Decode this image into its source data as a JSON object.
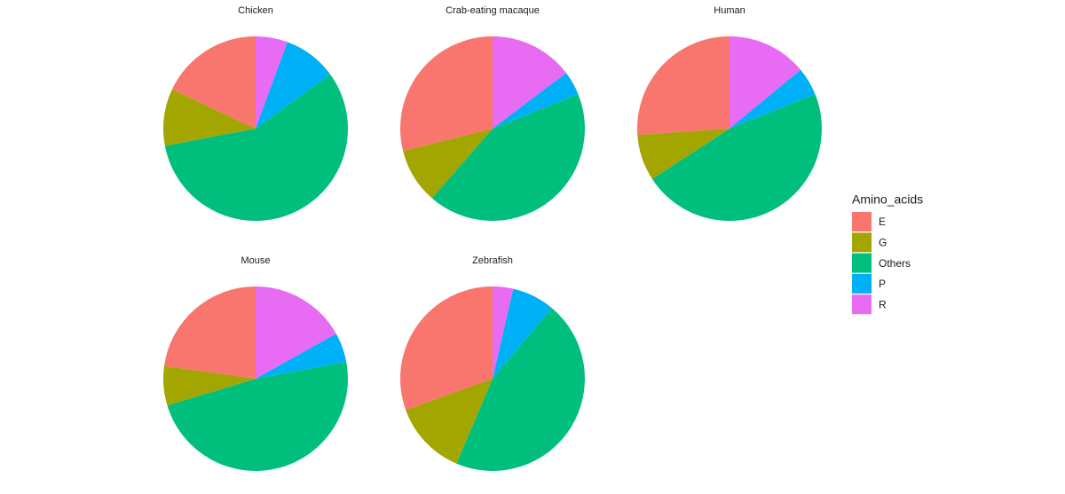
{
  "chart_data": {
    "type": "pie",
    "legend_title": "Amino_acids",
    "categories": [
      "E",
      "G",
      "Others",
      "P",
      "R"
    ],
    "colors": [
      "#F8766D",
      "#A3A500",
      "#00BF7D",
      "#00B0F6",
      "#E76BF3"
    ],
    "facets": [
      {
        "title": "Chicken",
        "values": [
          18,
          10,
          57,
          9.4,
          5.6
        ]
      },
      {
        "title": "Crab-eating macaque",
        "values": [
          28.9,
          9.7,
          42.5,
          4.2,
          14.7
        ]
      },
      {
        "title": "Human",
        "values": [
          26.1,
          8.1,
          46.9,
          4.9,
          14
        ]
      },
      {
        "title": "Mouse",
        "values": [
          22.8,
          6.9,
          48.2,
          5.2,
          16.9
        ]
      },
      {
        "title": "Zebrafish",
        "values": [
          30.5,
          13.1,
          45.3,
          7.5,
          3.6
        ]
      }
    ]
  }
}
